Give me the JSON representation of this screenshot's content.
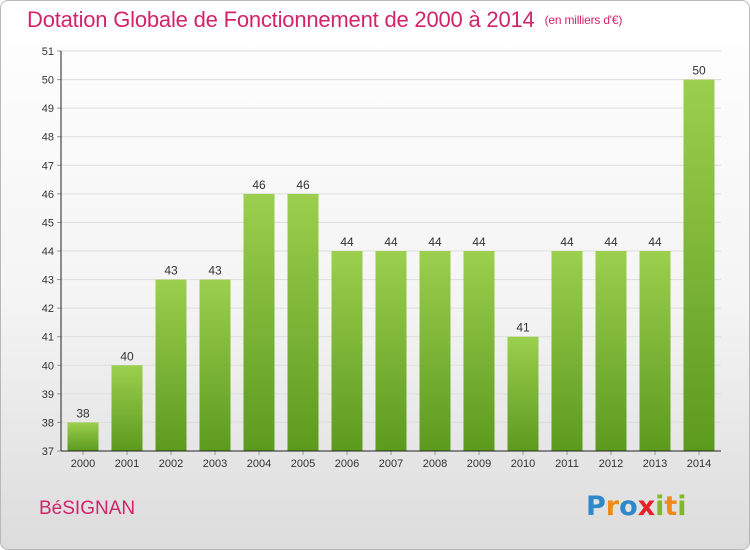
{
  "title": "Dotation Globale de Fonctionnement de 2000 à 2014",
  "unit": "(en milliers d'€)",
  "place": "BéSIGNAN",
  "brand": {
    "letters": [
      "P",
      "r",
      "o",
      "x",
      "i",
      "t",
      "i"
    ]
  },
  "chart_data": {
    "type": "bar",
    "title": "Dotation Globale de Fonctionnement de 2000 à 2014",
    "xlabel": "",
    "ylabel": "",
    "categories": [
      "2000",
      "2001",
      "2002",
      "2003",
      "2004",
      "2005",
      "2006",
      "2007",
      "2008",
      "2009",
      "2010",
      "2011",
      "2012",
      "2013",
      "2014"
    ],
    "values": [
      38,
      40,
      43,
      43,
      46,
      46,
      44,
      44,
      44,
      44,
      41,
      44,
      44,
      44,
      50
    ],
    "ylim": [
      37,
      51
    ],
    "yticks": [
      37,
      38,
      39,
      40,
      41,
      42,
      43,
      44,
      45,
      46,
      47,
      48,
      49,
      50,
      51
    ],
    "grid": true,
    "bar_color": "#7ab830",
    "bar_color_light": "#9ccf4e",
    "bar_color_dark": "#5c9a1e",
    "grid_color": "#dddddd",
    "axis_color": "#222222"
  }
}
